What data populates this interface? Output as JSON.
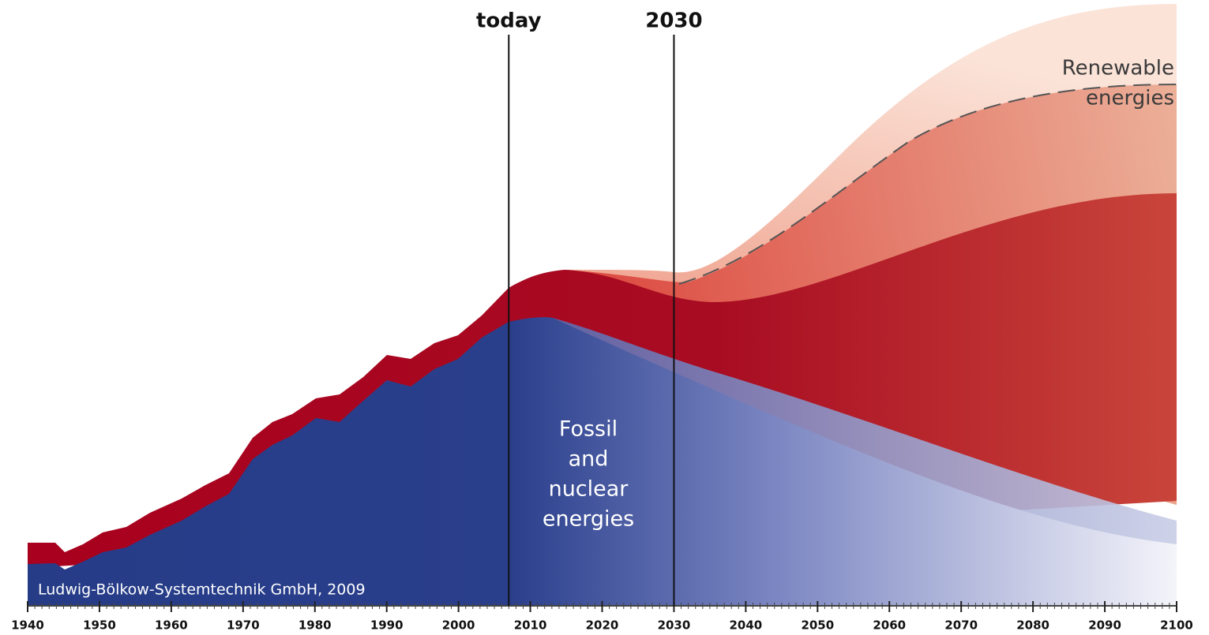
{
  "chart_data": {
    "type": "area",
    "xlim": [
      1940,
      2100
    ],
    "xticks": [
      1940,
      1950,
      1960,
      1970,
      1980,
      1990,
      2000,
      2010,
      2020,
      2030,
      2040,
      2050,
      2060,
      2070,
      2080,
      2090,
      2100
    ],
    "minor_tick_step": 1,
    "markers": [
      {
        "label": "today",
        "x": 2007
      },
      {
        "label": "2030",
        "x": 2030
      }
    ],
    "area_labels": [
      {
        "lines": [
          "Fossil",
          "and",
          "nuclear",
          "energies"
        ]
      },
      {
        "lines": [
          "Renewable",
          "energies"
        ]
      }
    ],
    "credit": "Ludwig-Bölkow-Systemtechnik GmbH, 2009"
  }
}
